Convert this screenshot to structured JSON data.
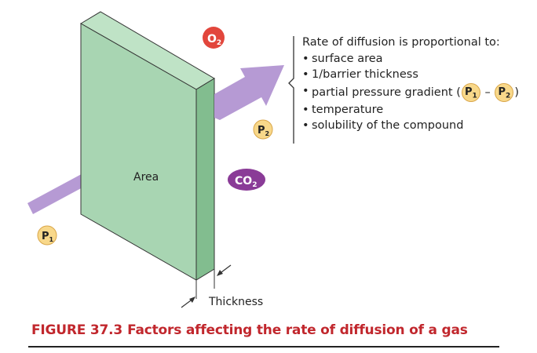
{
  "labels": {
    "area": "Area",
    "thickness": "Thickness"
  },
  "molecules": {
    "o2": "O",
    "o2_sub": "2",
    "co2": "CO",
    "co2_sub": "2",
    "p1": "P",
    "p1_sub": "1",
    "p2": "P",
    "p2_sub": "2"
  },
  "factors": {
    "heading": "Rate of diffusion is proportional to:",
    "items": [
      "surface area",
      "1/barrier thickness",
      "partial pressure gradient (",
      "temperature",
      "solubility of the compound"
    ],
    "gradient_minus": "–",
    "gradient_close": ")"
  },
  "caption": {
    "label": "FIGURE 37.3",
    "title": "Factors affecting the rate of diffusion of a gas"
  },
  "colors": {
    "membrane_front": "#a8d5b2",
    "membrane_side": "#82bd8f",
    "arrow": "#b69ad4",
    "o2_fill": "#e2463c",
    "co2_fill": "#8a3b97",
    "pressure_fill": "#f8d88a",
    "caption": "#c1272d"
  }
}
